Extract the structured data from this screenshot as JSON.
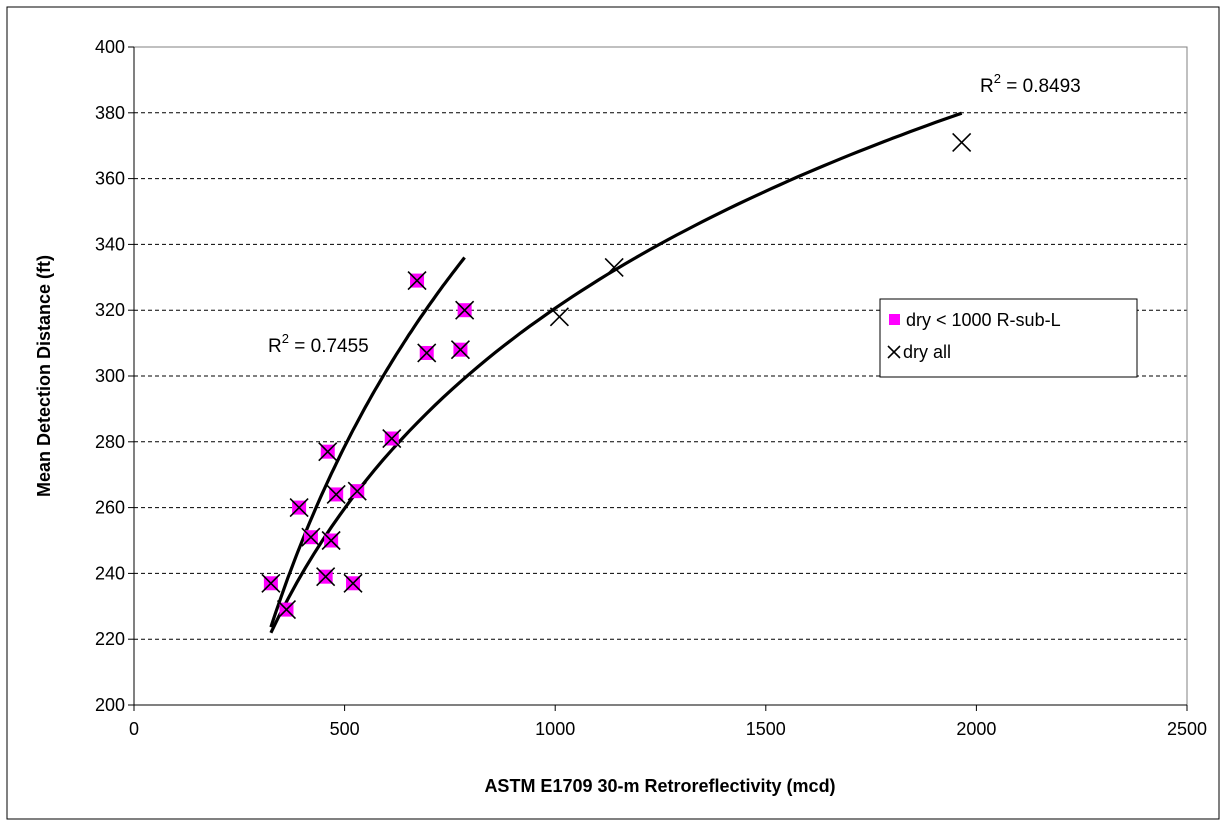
{
  "chart_data": {
    "type": "scatter",
    "title": "",
    "xlabel": "ASTM E1709 30-m Retroreflectivity (mcd)",
    "ylabel": "Mean Detection Distance (ft)",
    "xlim": [
      0,
      2500
    ],
    "ylim": [
      200,
      400
    ],
    "xticks": [
      0,
      500,
      1000,
      1500,
      2000,
      2500
    ],
    "yticks": [
      200,
      220,
      240,
      260,
      280,
      300,
      320,
      340,
      360,
      380,
      400
    ],
    "grid": "horizontal dashed",
    "legend_position": "right",
    "colors": {
      "magenta": "#ff00ff",
      "black": "#000000"
    },
    "series": [
      {
        "name": "dry < 1000 R-sub-L",
        "marker": "square",
        "color": "#ff00ff",
        "points": [
          [
            325,
            237
          ],
          [
            362,
            229
          ],
          [
            392,
            260
          ],
          [
            420,
            251
          ],
          [
            455,
            239
          ],
          [
            460,
            277
          ],
          [
            468,
            250
          ],
          [
            480,
            264
          ],
          [
            520,
            237
          ],
          [
            530,
            265
          ],
          [
            612,
            281
          ],
          [
            672,
            329
          ],
          [
            695,
            307
          ],
          [
            775,
            308
          ],
          [
            785,
            320
          ]
        ]
      },
      {
        "name": "dry all",
        "marker": "x",
        "color": "#000000",
        "points": [
          [
            325,
            237
          ],
          [
            362,
            229
          ],
          [
            392,
            260
          ],
          [
            420,
            251
          ],
          [
            455,
            239
          ],
          [
            460,
            277
          ],
          [
            468,
            250
          ],
          [
            480,
            264
          ],
          [
            520,
            237
          ],
          [
            530,
            265
          ],
          [
            612,
            281
          ],
          [
            672,
            329
          ],
          [
            695,
            307
          ],
          [
            775,
            308
          ],
          [
            785,
            320
          ],
          [
            1010,
            318
          ],
          [
            1140,
            333
          ],
          [
            1965,
            371
          ]
        ]
      }
    ],
    "trendlines": [
      {
        "type": "logarithmic",
        "r2_label": "R",
        "r2_sup": "2",
        "r2_value": " = 0.7455",
        "x_range": [
          325,
          785
        ],
        "a": 127.37,
        "b": -513.0
      },
      {
        "type": "logarithmic",
        "r2_label": "R",
        "r2_sup": "2",
        "r2_value": " = 0.8493",
        "x_range": [
          325,
          1965
        ],
        "a": 87.77,
        "b": -285.69
      }
    ]
  }
}
